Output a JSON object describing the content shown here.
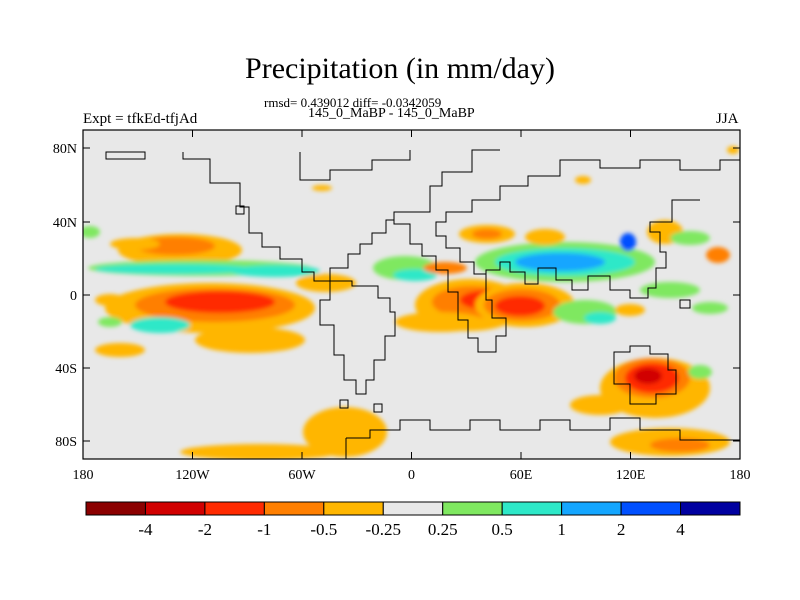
{
  "title": "Precipitation (in mm/day)",
  "stats_line": "rmsd= 0.439012 diff= -0.0342059",
  "experiment_ids": "145_0_MaBP - 145_0_MaBP",
  "experiment_label": "Expt = tfkEd-tfjAd",
  "season": "JJA",
  "axes": {
    "x_ticks": [
      "180",
      "120W",
      "60W",
      "0",
      "60E",
      "120E",
      "180"
    ],
    "y_ticks": [
      "80N",
      "40N",
      "0",
      "40S",
      "80S"
    ]
  },
  "colorbar": {
    "labels": [
      "-4",
      "-2",
      "-1",
      "-0.5",
      "-0.25",
      "0.25",
      "0.5",
      "1",
      "2",
      "4"
    ],
    "colors": [
      "#8b0000",
      "#d10000",
      "#ff2a00",
      "#ff7f00",
      "#ffb600",
      "#e8e8e8",
      "#7fe860",
      "#2ee8c8",
      "#14a6ff",
      "#0050ff",
      "#0000a0"
    ]
  },
  "colors": {
    "background_field": "#e8e8e8"
  }
}
